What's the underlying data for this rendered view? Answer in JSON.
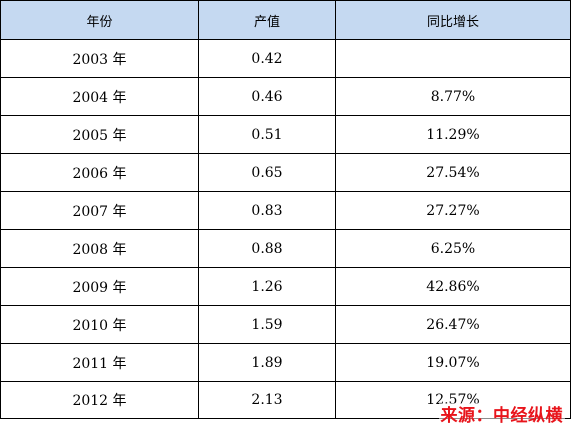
{
  "table": {
    "headers": [
      "年份",
      "产值",
      "同比增长"
    ],
    "rows": [
      {
        "year": "2003 年",
        "value": "0.42",
        "growth": ""
      },
      {
        "year": "2004 年",
        "value": "0.46",
        "growth": "8.77%"
      },
      {
        "year": "2005 年",
        "value": "0.51",
        "growth": "11.29%"
      },
      {
        "year": "2006 年",
        "value": "0.65",
        "growth": "27.54%"
      },
      {
        "year": "2007 年",
        "value": "0.83",
        "growth": "27.27%"
      },
      {
        "year": "2008 年",
        "value": "0.88",
        "growth": "6.25%"
      },
      {
        "year": "2009 年",
        "value": "1.26",
        "growth": "42.86%"
      },
      {
        "year": "2010 年",
        "value": "1.59",
        "growth": "26.47%"
      },
      {
        "year": "2011 年",
        "value": "1.89",
        "growth": "19.07%"
      },
      {
        "year": "2012 年",
        "value": "2.13",
        "growth": "12.57%"
      }
    ]
  },
  "source_watermark": "来源：中经纵横",
  "colors": {
    "header_background": "#c5d9f1",
    "watermark_text": "#e8141b",
    "border": "#000000"
  }
}
